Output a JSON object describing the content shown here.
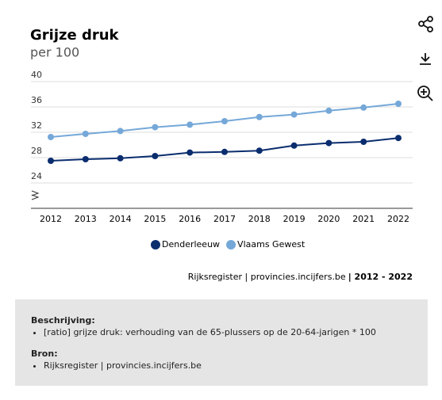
{
  "chart_data": {
    "type": "line",
    "title": "Grijze druk",
    "subtitle": "per 100",
    "categories": [
      "2012",
      "2013",
      "2014",
      "2015",
      "2016",
      "2017",
      "2018",
      "2019",
      "2020",
      "2021",
      "2022"
    ],
    "series": [
      {
        "name": "Denderleeuw",
        "color": "#0a2d6e",
        "values": [
          27.5,
          27.75,
          27.9,
          28.25,
          28.8,
          28.9,
          29.1,
          29.9,
          30.3,
          30.5,
          31.1
        ]
      },
      {
        "name": "Vlaams Gewest",
        "color": "#75a8d8",
        "values": [
          31.25,
          31.75,
          32.2,
          32.8,
          33.2,
          33.75,
          34.4,
          34.8,
          35.4,
          35.9,
          36.5
        ]
      }
    ],
    "ylim": [
      20,
      40
    ],
    "yticks": [
      24,
      28,
      32,
      36,
      40
    ],
    "grid": true,
    "legend": "bottom",
    "source": "Rijksregister | provincies.incijfers.be",
    "period": "| 2012 - 2022"
  },
  "description": {
    "heading": "Beschrijving:",
    "items": [
      "[ratio] grijze druk: verhouding van de 65-plussers op de 20-64-jarigen * 100"
    ]
  },
  "sources": {
    "heading": "Bron:",
    "items": [
      "Rijksregister | provincies.incijfers.be"
    ]
  }
}
